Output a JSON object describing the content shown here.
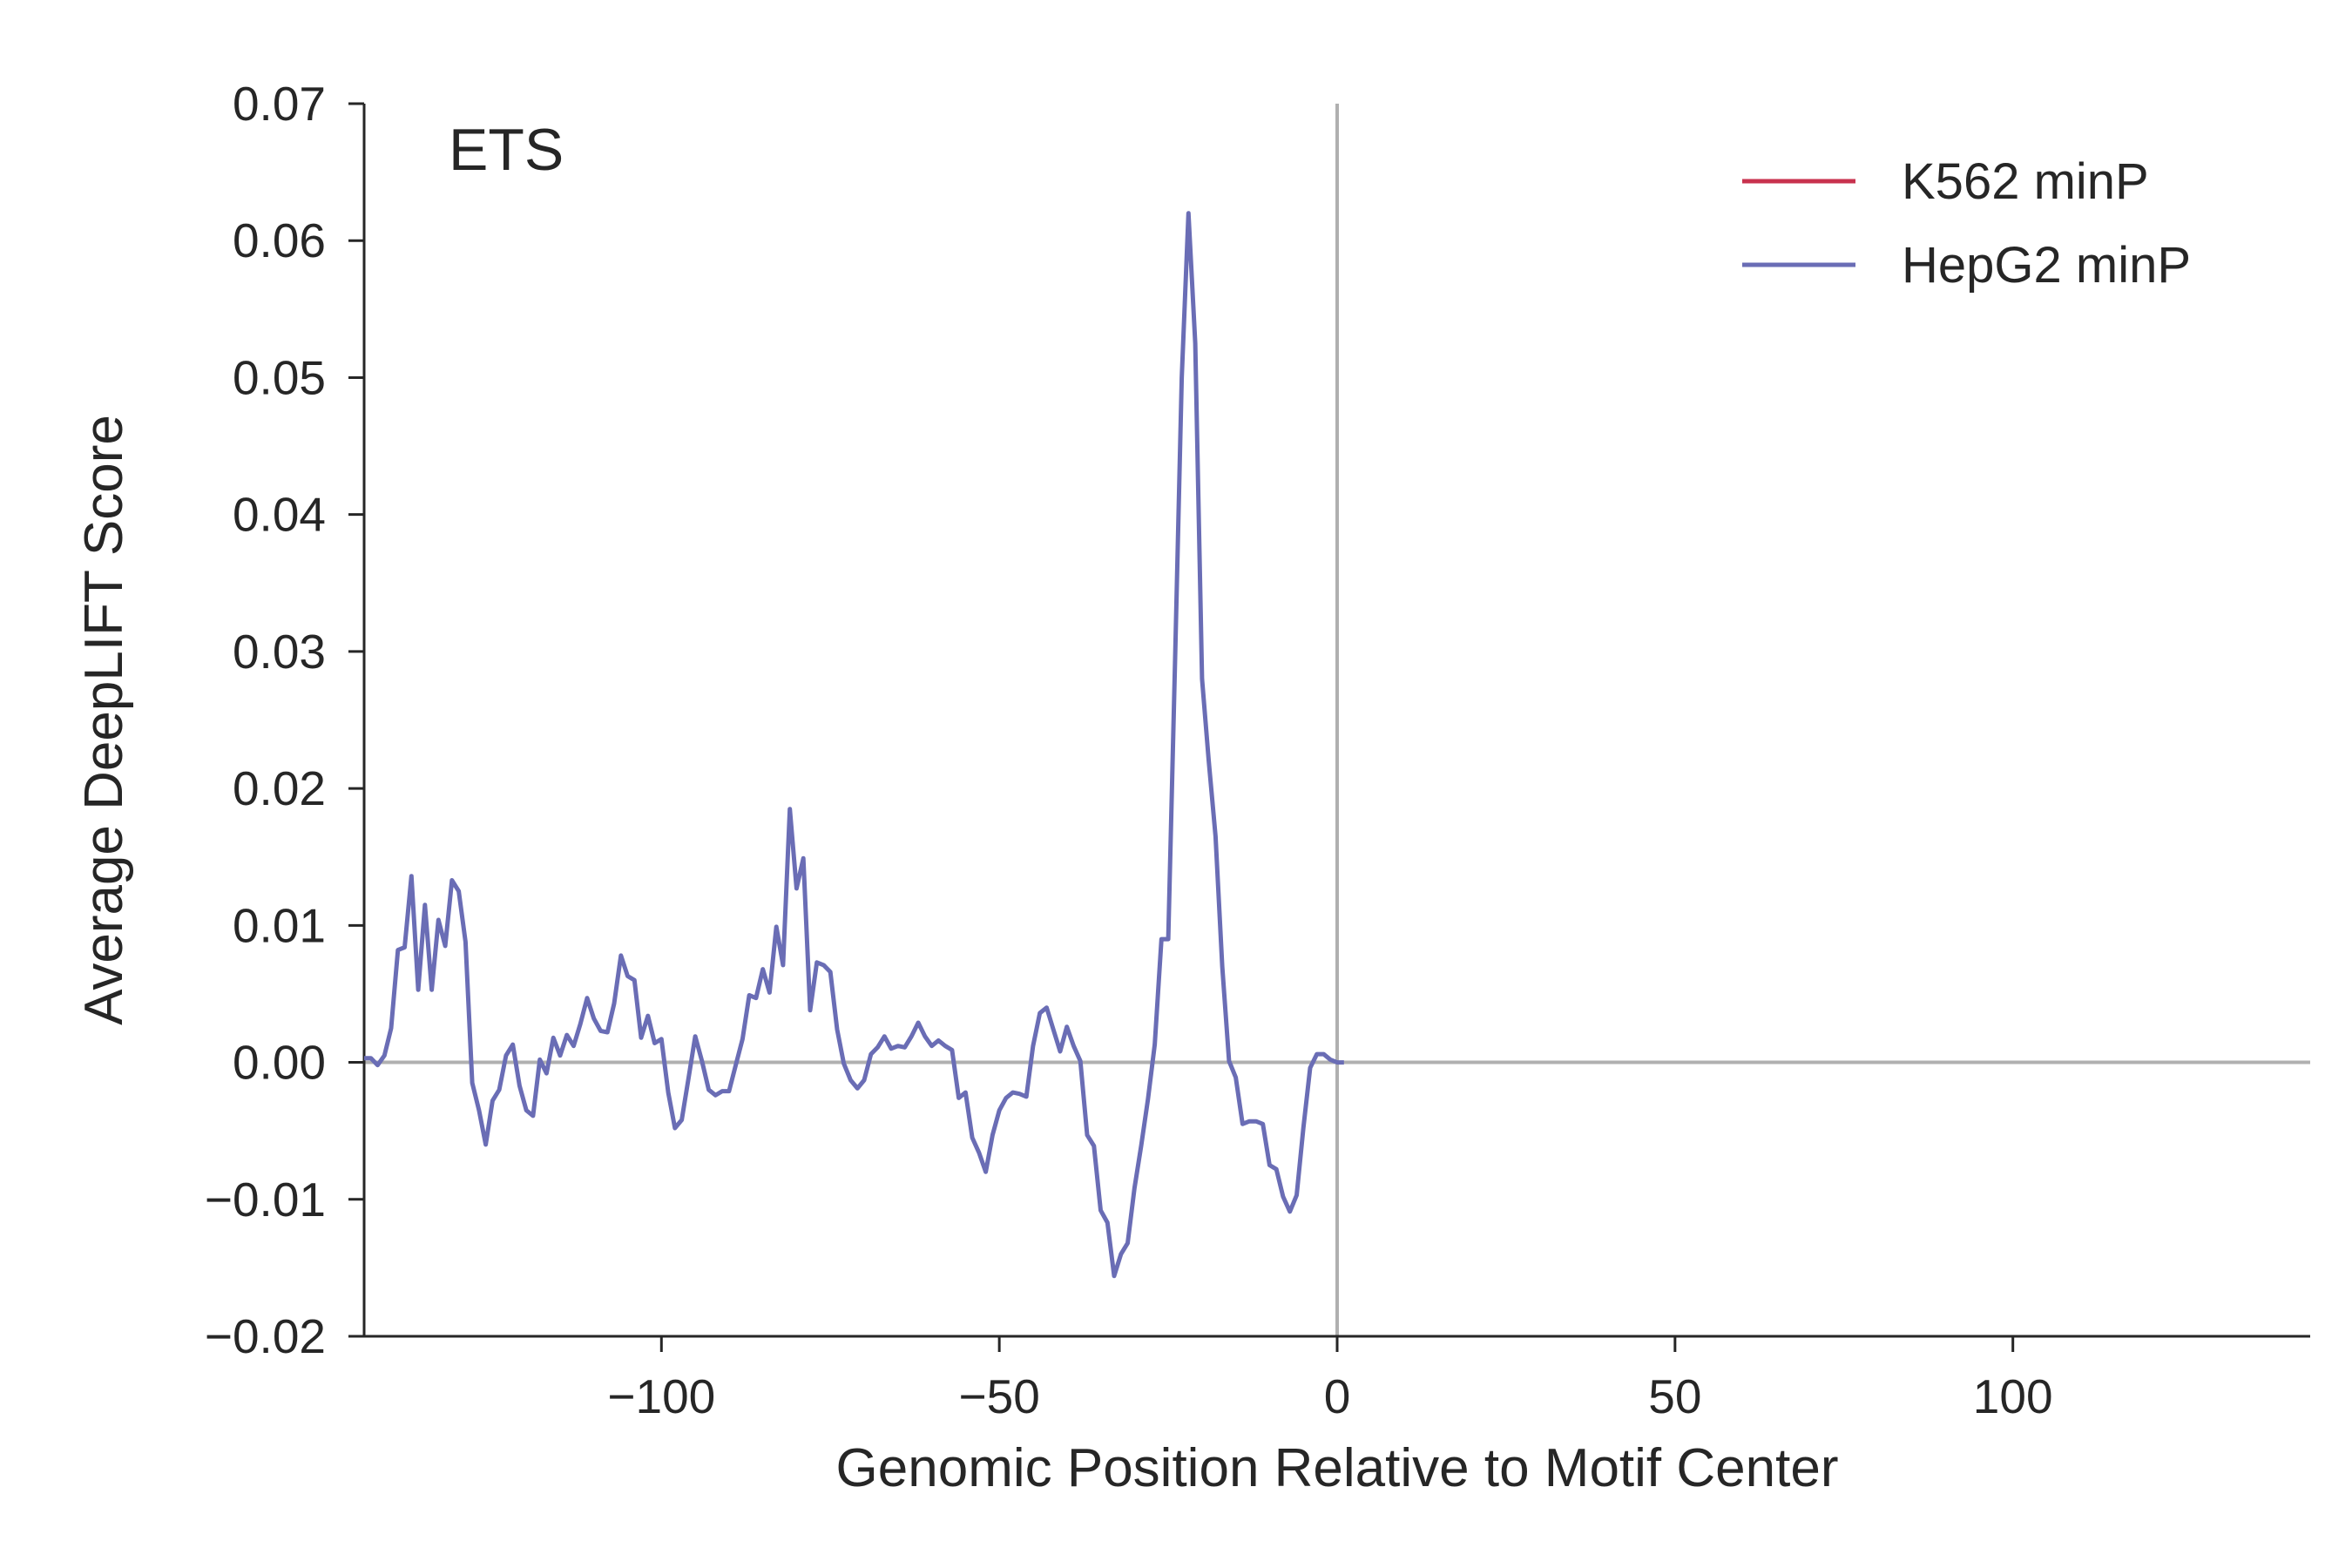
{
  "chart_data": {
    "type": "line",
    "panel_label": "ETS",
    "xlabel": "Genomic Position Relative to Motif Center",
    "ylabel": "Average DeepLIFT Score",
    "xlim": [
      -144,
      144
    ],
    "ylim": [
      -0.02,
      0.07
    ],
    "x_ticks": [
      -100,
      -50,
      0,
      50,
      100
    ],
    "x_tick_labels": [
      "−100",
      "−50",
      "0",
      "50",
      "100"
    ],
    "y_ticks": [
      -0.02,
      -0.01,
      0.0,
      0.01,
      0.02,
      0.03,
      0.04,
      0.05,
      0.06,
      0.07
    ],
    "y_tick_labels": [
      "−0.02",
      "−0.01",
      "0.00",
      "0.01",
      "0.02",
      "0.03",
      "0.04",
      "0.05",
      "0.06",
      "0.07"
    ],
    "grid": false,
    "reference_lines": {
      "x": 0,
      "y": 0,
      "color": "#b0b0b0"
    },
    "legend_position": "top-right",
    "series": [
      {
        "name": "K562 minP",
        "color": "#c8324e",
        "x": [],
        "y": []
      },
      {
        "name": "HepG2 minP",
        "color": "#6a6db5",
        "x": [
          -144,
          -143,
          -142,
          -141,
          -140,
          -139,
          -138,
          -137,
          -136,
          -135,
          -134,
          -133,
          -132,
          -131,
          -130,
          -129,
          -128,
          -127,
          -126,
          -125,
          -124,
          -123,
          -122,
          -121,
          -120,
          -119,
          -118,
          -117,
          -116,
          -115,
          -114,
          -113,
          -112,
          -111,
          -110,
          -109,
          -108,
          -107,
          -106,
          -105,
          -104,
          -103,
          -102,
          -101,
          -100,
          -99,
          -98,
          -97,
          -96,
          -95,
          -94,
          -93,
          -92,
          -91,
          -90,
          -89,
          -88,
          -87,
          -86,
          -85,
          -84,
          -83,
          -82,
          -81,
          -80,
          -79,
          -78,
          -77,
          -76,
          -75,
          -74,
          -73,
          -72,
          -71,
          -70,
          -69,
          -68,
          -67,
          -66,
          -65,
          -64,
          -63,
          -62,
          -61,
          -60,
          -59,
          -58,
          -57,
          -56,
          -55,
          -54,
          -53,
          -52,
          -51,
          -50,
          -49,
          -48,
          -47,
          -46,
          -45,
          -44,
          -43,
          -42,
          -41,
          -40,
          -39,
          -38,
          -37,
          -36,
          -35,
          -34,
          -33,
          -32,
          -31,
          -30,
          -29,
          -28,
          -27,
          -26,
          -25,
          -24,
          -23,
          -22,
          -21,
          -20,
          -19,
          -18,
          -17,
          -16,
          -15,
          -14,
          -13,
          -12,
          -11,
          -10,
          -9,
          -8,
          -7,
          -6,
          -5,
          -4,
          -3,
          -2,
          -1,
          0,
          1
        ],
        "y": [
          0.0003,
          0.0003,
          -0.0002,
          0.0005,
          0.0025,
          0.0082,
          0.0084,
          0.0136,
          0.0053,
          0.0115,
          0.0053,
          0.0104,
          0.0085,
          0.0133,
          0.0125,
          0.0088,
          -0.0015,
          -0.0035,
          -0.006,
          -0.0028,
          -0.002,
          0.0005,
          0.0013,
          -0.0017,
          -0.0035,
          -0.0039,
          0.0002,
          -0.0008,
          0.0018,
          0.0005,
          0.002,
          0.0012,
          0.0028,
          0.0047,
          0.0032,
          0.0023,
          0.0022,
          0.0043,
          0.0078,
          0.0063,
          0.006,
          0.0018,
          0.0034,
          0.0014,
          0.0017,
          -0.0022,
          -0.0048,
          -0.0042,
          -0.0012,
          0.0019,
          0.0001,
          -0.002,
          -0.0024,
          -0.0021,
          -0.0021,
          -0.0002,
          0.0017,
          0.0049,
          0.0047,
          0.0068,
          0.0051,
          0.0099,
          0.0071,
          0.0185,
          0.0127,
          0.0149,
          0.0038,
          0.0073,
          0.0071,
          0.0066,
          0.0024,
          -0.0001,
          -0.0013,
          -0.0019,
          -0.0013,
          0.0006,
          0.0011,
          0.0019,
          0.001,
          0.0012,
          0.0011,
          0.0019,
          0.0029,
          0.0019,
          0.0012,
          0.0016,
          0.0012,
          0.0009,
          -0.0026,
          -0.0022,
          -0.0055,
          -0.0066,
          -0.008,
          -0.0053,
          -0.0035,
          -0.0026,
          -0.0022,
          -0.0023,
          -0.0025,
          0.0012,
          0.0036,
          0.004,
          0.0024,
          0.0008,
          0.0026,
          0.0012,
          0.0001,
          -0.0053,
          -0.0061,
          -0.0108,
          -0.0117,
          -0.0156,
          -0.014,
          -0.0132,
          -0.0092,
          -0.0061,
          -0.0027,
          0.0013,
          0.009,
          0.009,
          0.029,
          0.05,
          0.062,
          0.0525,
          0.028,
          0.022,
          0.0165,
          0.007,
          0.0001,
          -0.0011,
          -0.0045,
          -0.0043,
          -0.0043,
          -0.0045,
          -0.0075,
          -0.0078,
          -0.0098,
          -0.0109,
          -0.0097,
          -0.0048,
          -0.0004,
          0.0006,
          0.0006,
          0.0002,
          0.0,
          0.0
        ]
      }
    ]
  }
}
